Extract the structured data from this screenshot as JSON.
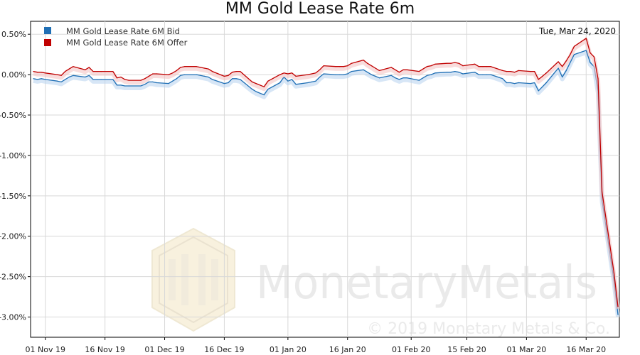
{
  "chart_data": {
    "type": "line",
    "title": "MM Gold Lease Rate 6m",
    "date_label": "Tue, Mar 24, 2020",
    "watermark": {
      "brand": "MonetaryMetals",
      "copyright": "© 2019 Monetary Metals & Co."
    },
    "ylim": [
      -3.25,
      0.66
    ],
    "y_ticks": [
      0.5,
      0.0,
      -0.5,
      -1.0,
      -1.5,
      -2.0,
      -2.5,
      -3.0
    ],
    "y_tick_labels": [
      "0.50%",
      "0.00%",
      "-0.50%",
      "-1.00%",
      "-1.50%",
      "-2.00%",
      "-2.50%",
      "-3.00%"
    ],
    "x_ticks": [
      "2019-11-01",
      "2019-11-16",
      "2019-12-01",
      "2019-12-16",
      "2020-01-01",
      "2020-01-16",
      "2020-02-01",
      "2020-02-15",
      "2020-03-01",
      "2020-03-16"
    ],
    "x_tick_labels": [
      "01 Nov 19",
      "16 Nov 19",
      "01 Dec 19",
      "16 Dec 19",
      "01 Jan 20",
      "16 Jan 20",
      "01 Feb 20",
      "15 Feb 20",
      "01 Mar 20",
      "16 Mar 20"
    ],
    "xlim": [
      "2019-10-29",
      "2020-03-24"
    ],
    "legend_position": "top-left",
    "grid": true,
    "series": [
      {
        "name": "MM Gold Lease Rate 6M Bid",
        "color": "#1f6fb5",
        "points": [
          [
            "2019-10-29",
            -0.05
          ],
          [
            "2019-10-30",
            -0.06
          ],
          [
            "2019-10-31",
            -0.05
          ],
          [
            "2019-11-01",
            -0.06
          ],
          [
            "2019-11-04",
            -0.08
          ],
          [
            "2019-11-05",
            -0.09
          ],
          [
            "2019-11-06",
            -0.06
          ],
          [
            "2019-11-07",
            -0.03
          ],
          [
            "2019-11-08",
            -0.01
          ],
          [
            "2019-11-11",
            -0.03
          ],
          [
            "2019-11-12",
            -0.01
          ],
          [
            "2019-11-13",
            -0.06
          ],
          [
            "2019-11-14",
            -0.06
          ],
          [
            "2019-11-15",
            -0.06
          ],
          [
            "2019-11-18",
            -0.06
          ],
          [
            "2019-11-19",
            -0.13
          ],
          [
            "2019-11-20",
            -0.13
          ],
          [
            "2019-11-21",
            -0.14
          ],
          [
            "2019-11-22",
            -0.14
          ],
          [
            "2019-11-25",
            -0.14
          ],
          [
            "2019-11-26",
            -0.12
          ],
          [
            "2019-11-27",
            -0.09
          ],
          [
            "2019-11-28",
            -0.09
          ],
          [
            "2019-11-29",
            -0.1
          ],
          [
            "2019-12-02",
            -0.11
          ],
          [
            "2019-12-03",
            -0.08
          ],
          [
            "2019-12-04",
            -0.05
          ],
          [
            "2019-12-05",
            -0.01
          ],
          [
            "2019-12-06",
            0.0
          ],
          [
            "2019-12-09",
            0.0
          ],
          [
            "2019-12-10",
            -0.01
          ],
          [
            "2019-12-11",
            -0.02
          ],
          [
            "2019-12-12",
            -0.03
          ],
          [
            "2019-12-13",
            -0.06
          ],
          [
            "2019-12-16",
            -0.11
          ],
          [
            "2019-12-17",
            -0.1
          ],
          [
            "2019-12-18",
            -0.05
          ],
          [
            "2019-12-19",
            -0.05
          ],
          [
            "2019-12-20",
            -0.06
          ],
          [
            "2019-12-23",
            -0.18
          ],
          [
            "2019-12-24",
            -0.21
          ],
          [
            "2019-12-26",
            -0.25
          ],
          [
            "2019-12-27",
            -0.18
          ],
          [
            "2019-12-30",
            -0.1
          ],
          [
            "2019-12-31",
            -0.03
          ],
          [
            "2020-01-01",
            -0.08
          ],
          [
            "2020-01-02",
            -0.06
          ],
          [
            "2020-01-03",
            -0.12
          ],
          [
            "2020-01-06",
            -0.1
          ],
          [
            "2020-01-07",
            -0.09
          ],
          [
            "2020-01-08",
            -0.08
          ],
          [
            "2020-01-09",
            -0.03
          ],
          [
            "2020-01-10",
            0.01
          ],
          [
            "2020-01-13",
            0.0
          ],
          [
            "2020-01-14",
            0.0
          ],
          [
            "2020-01-15",
            0.0
          ],
          [
            "2020-01-16",
            0.01
          ],
          [
            "2020-01-17",
            0.04
          ],
          [
            "2020-01-20",
            0.06
          ],
          [
            "2020-01-21",
            0.03
          ],
          [
            "2020-01-22",
            0.0
          ],
          [
            "2020-01-23",
            -0.02
          ],
          [
            "2020-01-24",
            -0.04
          ],
          [
            "2020-01-27",
            -0.01
          ],
          [
            "2020-01-28",
            -0.04
          ],
          [
            "2020-01-29",
            -0.06
          ],
          [
            "2020-01-30",
            -0.04
          ],
          [
            "2020-01-31",
            -0.04
          ],
          [
            "2020-02-03",
            -0.07
          ],
          [
            "2020-02-04",
            -0.04
          ],
          [
            "2020-02-05",
            -0.01
          ],
          [
            "2020-02-06",
            0.0
          ],
          [
            "2020-02-07",
            0.02
          ],
          [
            "2020-02-10",
            0.03
          ],
          [
            "2020-02-11",
            0.03
          ],
          [
            "2020-02-12",
            0.04
          ],
          [
            "2020-02-13",
            0.03
          ],
          [
            "2020-02-14",
            0.01
          ],
          [
            "2020-02-17",
            0.03
          ],
          [
            "2020-02-18",
            0.0
          ],
          [
            "2020-02-19",
            0.0
          ],
          [
            "2020-02-20",
            0.0
          ],
          [
            "2020-02-21",
            0.0
          ],
          [
            "2020-02-24",
            -0.05
          ],
          [
            "2020-02-25",
            -0.1
          ],
          [
            "2020-02-26",
            -0.1
          ],
          [
            "2020-02-27",
            -0.11
          ],
          [
            "2020-02-28",
            -0.1
          ],
          [
            "2020-03-02",
            -0.11
          ],
          [
            "2020-03-03",
            -0.1
          ],
          [
            "2020-03-04",
            -0.2
          ],
          [
            "2020-03-05",
            -0.15
          ],
          [
            "2020-03-06",
            -0.1
          ],
          [
            "2020-03-09",
            0.08
          ],
          [
            "2020-03-10",
            -0.03
          ],
          [
            "2020-03-11",
            0.05
          ],
          [
            "2020-03-12",
            0.15
          ],
          [
            "2020-03-13",
            0.25
          ],
          [
            "2020-03-16",
            0.3
          ],
          [
            "2020-03-17",
            0.15
          ],
          [
            "2020-03-18",
            0.1
          ],
          [
            "2020-03-19",
            -0.2
          ],
          [
            "2020-03-20",
            -1.55
          ],
          [
            "2020-03-23",
            -2.55
          ],
          [
            "2020-03-24",
            -2.97
          ]
        ]
      },
      {
        "name": "MM Gold Lease Rate 6M Offer",
        "color": "#c00000",
        "points": [
          [
            "2019-10-29",
            0.04
          ],
          [
            "2019-10-30",
            0.03
          ],
          [
            "2019-10-31",
            0.03
          ],
          [
            "2019-11-01",
            0.02
          ],
          [
            "2019-11-04",
            0.0
          ],
          [
            "2019-11-05",
            -0.01
          ],
          [
            "2019-11-06",
            0.04
          ],
          [
            "2019-11-07",
            0.07
          ],
          [
            "2019-11-08",
            0.1
          ],
          [
            "2019-11-11",
            0.06
          ],
          [
            "2019-11-12",
            0.09
          ],
          [
            "2019-11-13",
            0.04
          ],
          [
            "2019-11-14",
            0.04
          ],
          [
            "2019-11-15",
            0.04
          ],
          [
            "2019-11-18",
            0.04
          ],
          [
            "2019-11-19",
            -0.04
          ],
          [
            "2019-11-20",
            -0.03
          ],
          [
            "2019-11-21",
            -0.06
          ],
          [
            "2019-11-22",
            -0.07
          ],
          [
            "2019-11-25",
            -0.07
          ],
          [
            "2019-11-26",
            -0.05
          ],
          [
            "2019-11-27",
            -0.02
          ],
          [
            "2019-11-28",
            0.01
          ],
          [
            "2019-11-29",
            0.01
          ],
          [
            "2019-12-02",
            0.0
          ],
          [
            "2019-12-03",
            0.02
          ],
          [
            "2019-12-04",
            0.05
          ],
          [
            "2019-12-05",
            0.09
          ],
          [
            "2019-12-06",
            0.1
          ],
          [
            "2019-12-09",
            0.1
          ],
          [
            "2019-12-10",
            0.09
          ],
          [
            "2019-12-11",
            0.08
          ],
          [
            "2019-12-12",
            0.07
          ],
          [
            "2019-12-13",
            0.04
          ],
          [
            "2019-12-16",
            -0.02
          ],
          [
            "2019-12-17",
            -0.01
          ],
          [
            "2019-12-18",
            0.03
          ],
          [
            "2019-12-19",
            0.04
          ],
          [
            "2019-12-20",
            0.04
          ],
          [
            "2019-12-23",
            -0.09
          ],
          [
            "2019-12-24",
            -0.11
          ],
          [
            "2019-12-26",
            -0.15
          ],
          [
            "2019-12-27",
            -0.08
          ],
          [
            "2019-12-30",
            0.0
          ],
          [
            "2019-12-31",
            0.02
          ],
          [
            "2020-01-01",
            0.01
          ],
          [
            "2020-01-02",
            0.02
          ],
          [
            "2020-01-03",
            -0.02
          ],
          [
            "2020-01-06",
            0.0
          ],
          [
            "2020-01-07",
            0.01
          ],
          [
            "2020-01-08",
            0.02
          ],
          [
            "2020-01-09",
            0.06
          ],
          [
            "2020-01-10",
            0.11
          ],
          [
            "2020-01-13",
            0.1
          ],
          [
            "2020-01-14",
            0.1
          ],
          [
            "2020-01-15",
            0.1
          ],
          [
            "2020-01-16",
            0.11
          ],
          [
            "2020-01-17",
            0.14
          ],
          [
            "2020-01-20",
            0.18
          ],
          [
            "2020-01-21",
            0.14
          ],
          [
            "2020-01-22",
            0.11
          ],
          [
            "2020-01-23",
            0.08
          ],
          [
            "2020-01-24",
            0.05
          ],
          [
            "2020-01-27",
            0.09
          ],
          [
            "2020-01-28",
            0.06
          ],
          [
            "2020-01-29",
            0.03
          ],
          [
            "2020-01-30",
            0.06
          ],
          [
            "2020-01-31",
            0.06
          ],
          [
            "2020-02-03",
            0.04
          ],
          [
            "2020-02-04",
            0.07
          ],
          [
            "2020-02-05",
            0.1
          ],
          [
            "2020-02-06",
            0.11
          ],
          [
            "2020-02-07",
            0.13
          ],
          [
            "2020-02-10",
            0.14
          ],
          [
            "2020-02-11",
            0.14
          ],
          [
            "2020-02-12",
            0.15
          ],
          [
            "2020-02-13",
            0.14
          ],
          [
            "2020-02-14",
            0.11
          ],
          [
            "2020-02-17",
            0.13
          ],
          [
            "2020-02-18",
            0.1
          ],
          [
            "2020-02-19",
            0.1
          ],
          [
            "2020-02-20",
            0.1
          ],
          [
            "2020-02-21",
            0.1
          ],
          [
            "2020-02-24",
            0.05
          ],
          [
            "2020-02-25",
            0.04
          ],
          [
            "2020-02-26",
            0.04
          ],
          [
            "2020-02-27",
            0.03
          ],
          [
            "2020-02-28",
            0.05
          ],
          [
            "2020-03-02",
            0.04
          ],
          [
            "2020-03-03",
            0.04
          ],
          [
            "2020-03-04",
            -0.06
          ],
          [
            "2020-03-05",
            -0.02
          ],
          [
            "2020-03-06",
            0.02
          ],
          [
            "2020-03-09",
            0.16
          ],
          [
            "2020-03-10",
            0.1
          ],
          [
            "2020-03-11",
            0.17
          ],
          [
            "2020-03-12",
            0.25
          ],
          [
            "2020-03-13",
            0.35
          ],
          [
            "2020-03-16",
            0.45
          ],
          [
            "2020-03-17",
            0.27
          ],
          [
            "2020-03-18",
            0.22
          ],
          [
            "2020-03-19",
            -0.05
          ],
          [
            "2020-03-20",
            -1.45
          ],
          [
            "2020-03-23",
            -2.45
          ],
          [
            "2020-03-24",
            -2.87
          ]
        ]
      }
    ]
  }
}
